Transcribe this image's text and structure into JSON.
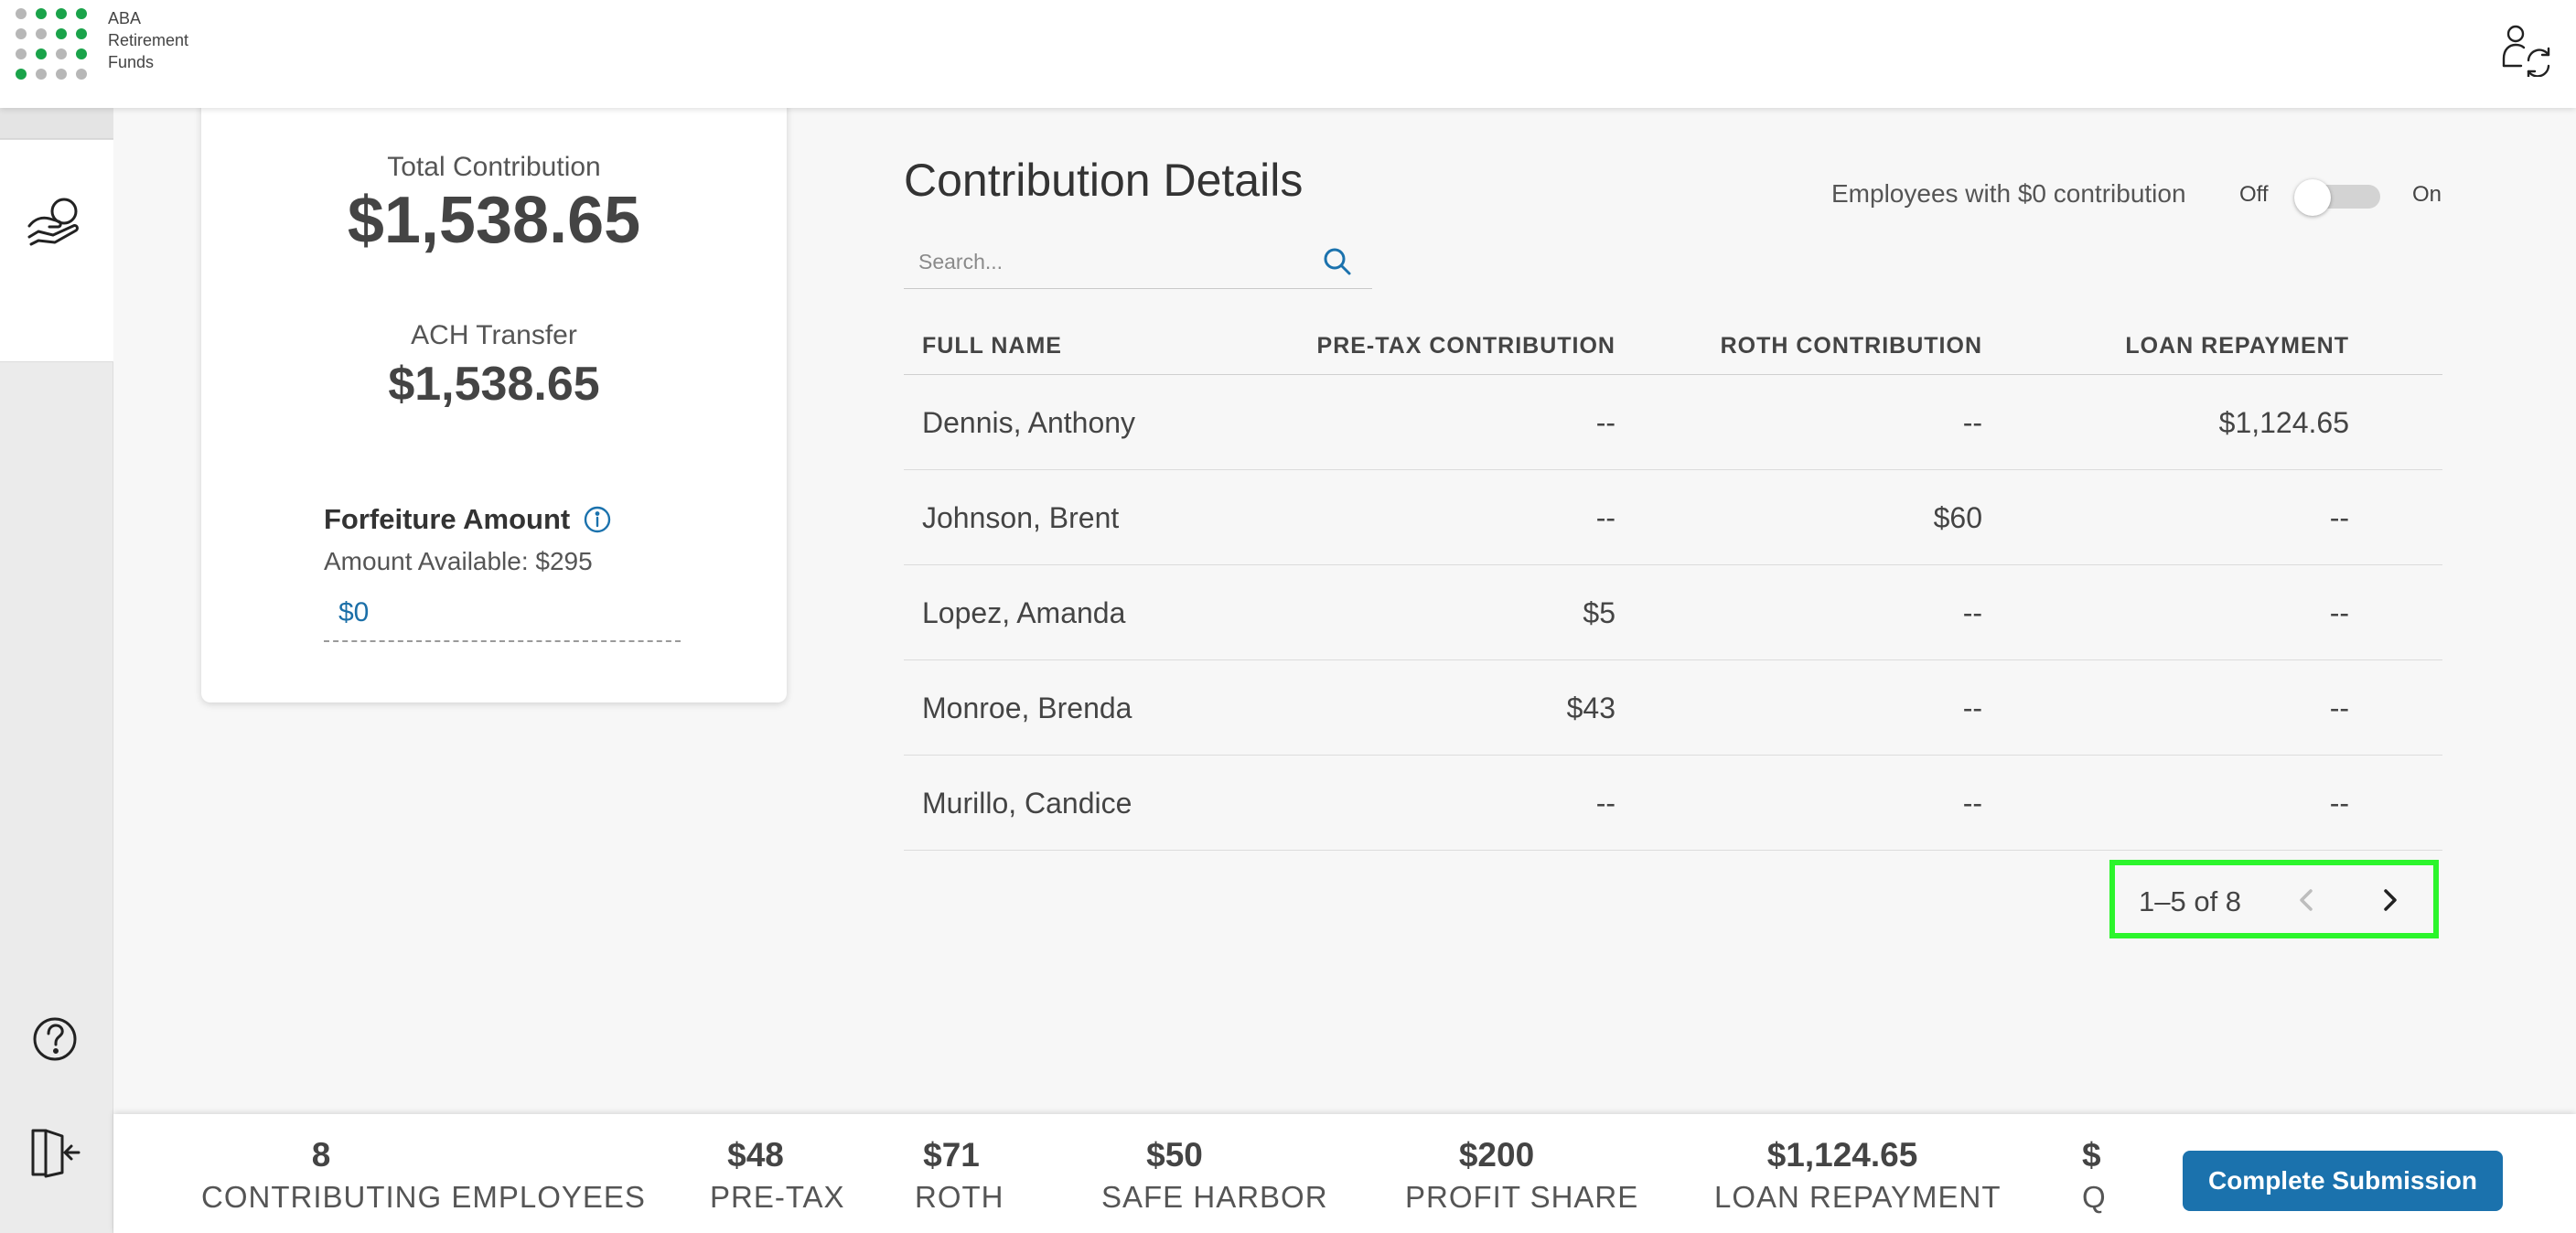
{
  "header": {
    "logo_text_line1": "ABA",
    "logo_text_line2": "Retirement",
    "logo_text_line3": "Funds",
    "user_switch_icon": "user-switch-icon"
  },
  "sidebar": {
    "active_icon": "hand-coin-icon",
    "help_icon": "help-icon",
    "logout_icon": "logout-icon"
  },
  "summary_card": {
    "total_label": "Total Contribution",
    "total_value": "$1,538.65",
    "ach_label": "ACH Transfer",
    "ach_value": "$1,538.65",
    "forfeiture_label": "Forfeiture Amount",
    "amount_available": "Amount Available: $295",
    "forfeiture_input_value": "$0"
  },
  "details": {
    "title": "Contribution Details",
    "toggle_label": "Employees with $0 contribution",
    "toggle_off": "Off",
    "toggle_on": "On",
    "toggle_state": "off",
    "search_placeholder": "Search...",
    "columns": [
      "FULL NAME",
      "PRE-TAX CONTRIBUTION",
      "ROTH CONTRIBUTION",
      "LOAN REPAYMENT"
    ],
    "rows": [
      {
        "name": "Dennis, Anthony",
        "pretax": "--",
        "roth": "--",
        "loan": "$1,124.65"
      },
      {
        "name": "Johnson, Brent",
        "pretax": "--",
        "roth": "$60",
        "loan": "--"
      },
      {
        "name": "Lopez, Amanda",
        "pretax": "$5",
        "roth": "--",
        "loan": "--"
      },
      {
        "name": "Monroe, Brenda",
        "pretax": "$43",
        "roth": "--",
        "loan": "--"
      },
      {
        "name": "Murillo, Candice",
        "pretax": "--",
        "roth": "--",
        "loan": "--"
      }
    ],
    "pagination": "1–5 of 8",
    "highlight_color": "#2cf52c"
  },
  "footer": {
    "stats": [
      {
        "value": "8",
        "label": "CONTRIBUTING EMPLOYEES"
      },
      {
        "value": "$48",
        "label": "PRE-TAX"
      },
      {
        "value": "$71",
        "label": "ROTH"
      },
      {
        "value": "$50",
        "label": "SAFE HARBOR"
      },
      {
        "value": "$200",
        "label": "PROFIT SHARE"
      },
      {
        "value": "$1,124.65",
        "label": "LOAN REPAYMENT"
      }
    ],
    "clipped_stat_value": "$",
    "clipped_stat_label": "Q",
    "submit_label": "Complete Submission"
  },
  "colors": {
    "brand_green": "#1aa34a",
    "accent_blue": "#1b72ad",
    "dot_gray": "#b7b7b7"
  }
}
